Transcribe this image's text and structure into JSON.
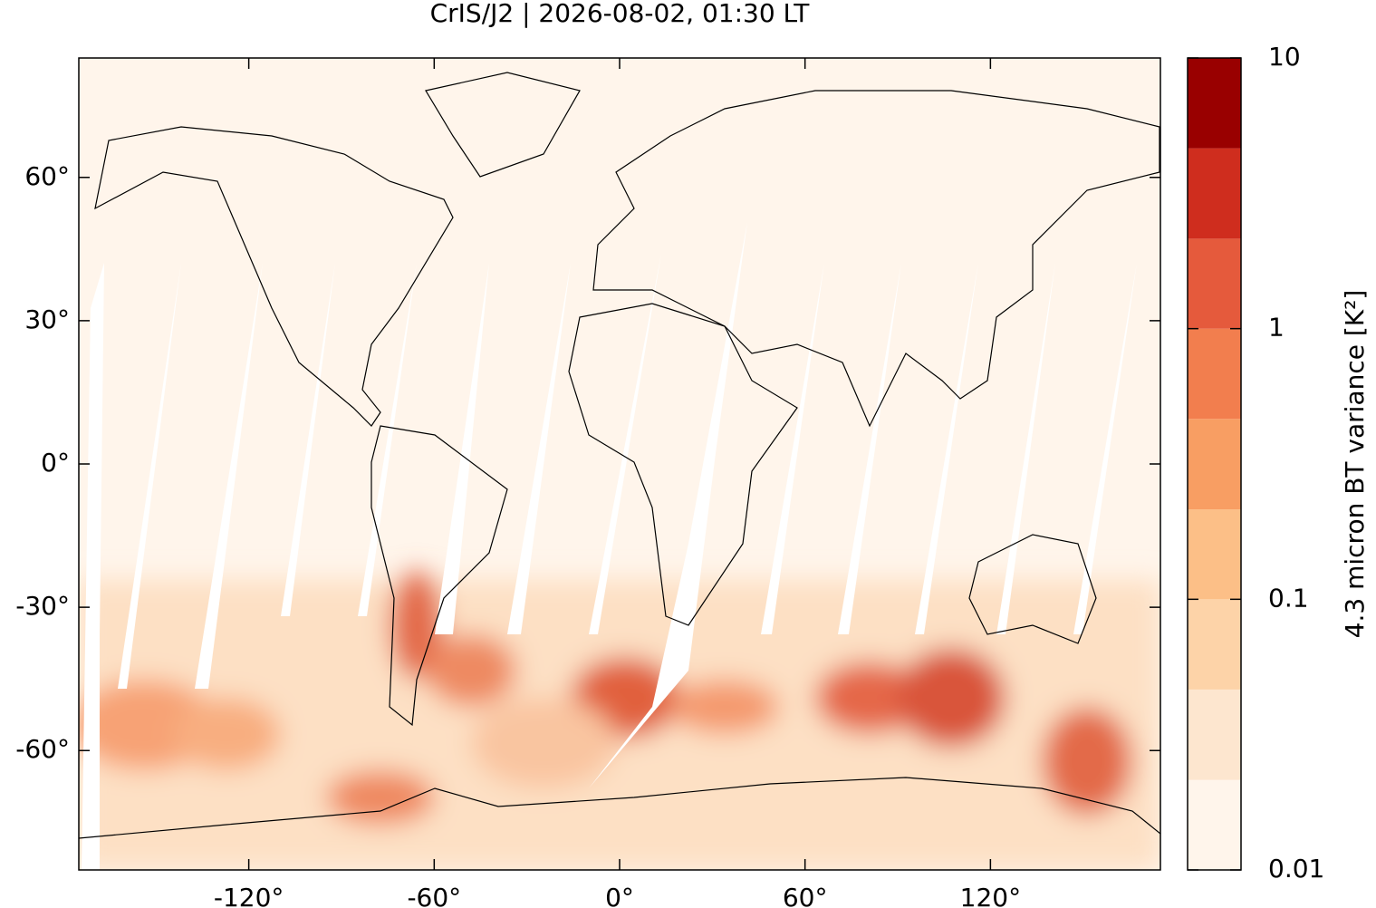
{
  "chart_data": {
    "type": "map",
    "title": "CrIS/J2 | 2026-08-02, 01:30 LT",
    "xlim": [
      -175,
      175
    ],
    "ylim": [
      -85,
      85
    ],
    "xticks": [
      {
        "value": -120,
        "label": "-120°"
      },
      {
        "value": -60,
        "label": "-60°"
      },
      {
        "value": 0,
        "label": "0°"
      },
      {
        "value": 60,
        "label": "60°"
      },
      {
        "value": 120,
        "label": "120°"
      }
    ],
    "yticks": [
      {
        "value": -60,
        "label": "-60°"
      },
      {
        "value": -30,
        "label": "-30°"
      },
      {
        "value": 0,
        "label": "0°"
      },
      {
        "value": 30,
        "label": "30°"
      },
      {
        "value": 60,
        "label": "60°"
      }
    ],
    "colorbar": {
      "label": "4.3 micron BT variance [K²]",
      "log_scale": true,
      "lim": [
        0.01,
        10
      ],
      "ticks": [
        0.01,
        0.1,
        1,
        10
      ],
      "levels": [
        0.01,
        0.0215,
        0.0464,
        0.1,
        0.215,
        0.464,
        1,
        2.15,
        4.64,
        10
      ],
      "colors": [
        "#fff5eb",
        "#fde6cf",
        "#fdd3a8",
        "#fcbf87",
        "#f89e63",
        "#f27e4e",
        "#e55a3c",
        "#cf2d1e",
        "#990000"
      ]
    }
  }
}
